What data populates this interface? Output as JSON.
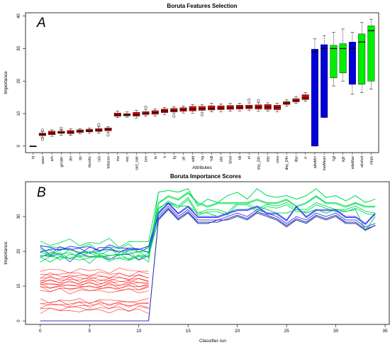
{
  "chart_data": [
    {
      "type": "box",
      "panel_letter": "A",
      "title": "Boruta Features Selection",
      "xlabel": "Attributes",
      "ylabel": "Importance",
      "ylim": [
        -2,
        41
      ],
      "yticks": [
        0,
        10,
        20,
        30,
        40
      ],
      "colors": {
        "rejected": "#dd0000",
        "tentative": "#0000dd",
        "confirmed": "#00ee00",
        "shadow": "#222222"
      },
      "categories": [
        "ht",
        "aoeo",
        "arh",
        "gender",
        "dm",
        "bb",
        "diuretic",
        "ccb",
        "tobacco",
        "rha",
        "esc",
        "sart_rate",
        "bmi",
        "ta",
        "k",
        "tg",
        "plr",
        "sdd",
        "hg",
        "hdl",
        "abc",
        "tchol",
        "ldl",
        "ef",
        "sbp_24h",
        "sbp",
        "urea",
        "dbp_24h",
        "dbp",
        "cr",
        "adwMin",
        "lowMean",
        "hgt",
        "age",
        "sdwMax",
        "alcohol",
        "mbps"
      ],
      "boxes": [
        {
          "name": "ht",
          "status": "shadow",
          "q1": 0,
          "median": 0,
          "q3": 0,
          "whisker_low": 0,
          "whisker_high": 0,
          "outliers": []
        },
        {
          "name": "aoeo",
          "status": "rejected",
          "q1": 3.2,
          "median": 3.6,
          "q3": 4.0,
          "whisker_low": 2.6,
          "whisker_high": 4.5,
          "outliers": [
            2.1,
            4.9
          ]
        },
        {
          "name": "arh",
          "status": "rejected",
          "q1": 3.5,
          "median": 4.0,
          "q3": 4.6,
          "whisker_low": 3.0,
          "whisker_high": 5.0,
          "outliers": []
        },
        {
          "name": "gender",
          "status": "rejected",
          "q1": 3.9,
          "median": 4.2,
          "q3": 4.6,
          "whisker_low": 3.3,
          "whisker_high": 5.0,
          "outliers": [
            5.5
          ]
        },
        {
          "name": "dm",
          "status": "rejected",
          "q1": 3.8,
          "median": 4.3,
          "q3": 4.8,
          "whisker_low": 3.3,
          "whisker_high": 5.3,
          "outliers": []
        },
        {
          "name": "bb",
          "status": "rejected",
          "q1": 4.2,
          "median": 4.6,
          "q3": 5.0,
          "whisker_low": 3.8,
          "whisker_high": 5.4,
          "outliers": []
        },
        {
          "name": "diuretic",
          "status": "rejected",
          "q1": 4.4,
          "median": 4.7,
          "q3": 5.2,
          "whisker_low": 4.0,
          "whisker_high": 5.6,
          "outliers": []
        },
        {
          "name": "ccb",
          "status": "rejected",
          "q1": 4.5,
          "median": 4.9,
          "q3": 5.4,
          "whisker_low": 4.0,
          "whisker_high": 5.9,
          "outliers": [
            6.6
          ]
        },
        {
          "name": "tobacco",
          "status": "rejected",
          "q1": 4.7,
          "median": 5.1,
          "q3": 5.6,
          "whisker_low": 4.2,
          "whisker_high": 6.0,
          "outliers": [
            3.4
          ]
        },
        {
          "name": "rha",
          "status": "rejected",
          "q1": 9.2,
          "median": 9.6,
          "q3": 10.2,
          "whisker_low": 8.8,
          "whisker_high": 10.8,
          "outliers": []
        },
        {
          "name": "esc",
          "status": "rejected",
          "q1": 9.3,
          "median": 9.6,
          "q3": 10.0,
          "whisker_low": 8.9,
          "whisker_high": 10.5,
          "outliers": []
        },
        {
          "name": "sart_rate",
          "status": "rejected",
          "q1": 9.2,
          "median": 9.7,
          "q3": 10.4,
          "whisker_low": 8.6,
          "whisker_high": 11.0,
          "outliers": []
        },
        {
          "name": "bmi",
          "status": "rejected",
          "q1": 9.7,
          "median": 10.1,
          "q3": 10.6,
          "whisker_low": 9.2,
          "whisker_high": 11.2,
          "outliers": [
            12.0
          ]
        },
        {
          "name": "ta",
          "status": "rejected",
          "q1": 9.8,
          "median": 10.3,
          "q3": 10.9,
          "whisker_low": 9.2,
          "whisker_high": 11.4,
          "outliers": []
        },
        {
          "name": "k",
          "status": "rejected",
          "q1": 10.3,
          "median": 10.8,
          "q3": 11.4,
          "whisker_low": 9.7,
          "whisker_high": 11.9,
          "outliers": []
        },
        {
          "name": "tg",
          "status": "rejected",
          "q1": 10.5,
          "median": 11.0,
          "q3": 11.6,
          "whisker_low": 10.0,
          "whisker_high": 12.1,
          "outliers": [
            9.2
          ]
        },
        {
          "name": "plr",
          "status": "rejected",
          "q1": 10.7,
          "median": 11.2,
          "q3": 11.8,
          "whisker_low": 10.2,
          "whisker_high": 12.3,
          "outliers": []
        },
        {
          "name": "sdd",
          "status": "rejected",
          "q1": 10.8,
          "median": 11.4,
          "q3": 12.2,
          "whisker_low": 10.1,
          "whisker_high": 12.8,
          "outliers": []
        },
        {
          "name": "hg",
          "status": "rejected",
          "q1": 11.0,
          "median": 11.5,
          "q3": 12.2,
          "whisker_low": 10.4,
          "whisker_high": 12.8,
          "outliers": [
            9.6
          ]
        },
        {
          "name": "hdl",
          "status": "rejected",
          "q1": 11.1,
          "median": 11.6,
          "q3": 12.4,
          "whisker_low": 10.6,
          "whisker_high": 13.2,
          "outliers": []
        },
        {
          "name": "abc",
          "status": "rejected",
          "q1": 11.2,
          "median": 11.7,
          "q3": 12.4,
          "whisker_low": 10.6,
          "whisker_high": 13.0,
          "outliers": []
        },
        {
          "name": "tchol",
          "status": "rejected",
          "q1": 11.3,
          "median": 11.8,
          "q3": 12.5,
          "whisker_low": 10.7,
          "whisker_high": 13.1,
          "outliers": []
        },
        {
          "name": "ldl",
          "status": "rejected",
          "q1": 11.4,
          "median": 11.9,
          "q3": 12.6,
          "whisker_low": 10.8,
          "whisker_high": 13.2,
          "outliers": []
        },
        {
          "name": "ef",
          "status": "rejected",
          "q1": 11.5,
          "median": 12.0,
          "q3": 12.6,
          "whisker_low": 10.9,
          "whisker_high": 13.3,
          "outliers": [
            14.2
          ]
        },
        {
          "name": "sbp_24h",
          "status": "rejected",
          "q1": 11.4,
          "median": 12.0,
          "q3": 12.7,
          "whisker_low": 10.8,
          "whisker_high": 13.3,
          "outliers": [
            14.0
          ]
        },
        {
          "name": "sbp",
          "status": "rejected",
          "q1": 11.3,
          "median": 12.0,
          "q3": 12.8,
          "whisker_low": 10.7,
          "whisker_high": 13.3,
          "outliers": []
        },
        {
          "name": "urea",
          "status": "rejected",
          "q1": 11.2,
          "median": 11.9,
          "q3": 12.6,
          "whisker_low": 10.6,
          "whisker_high": 13.2,
          "outliers": []
        },
        {
          "name": "dbp_24h",
          "status": "rejected",
          "q1": 12.8,
          "median": 13.2,
          "q3": 13.7,
          "whisker_low": 12.3,
          "whisker_high": 14.2,
          "outliers": []
        },
        {
          "name": "dbp",
          "status": "rejected",
          "q1": 13.6,
          "median": 14.0,
          "q3": 14.6,
          "whisker_low": 13.2,
          "whisker_high": 15.2,
          "outliers": []
        },
        {
          "name": "cr",
          "status": "rejected",
          "q1": 14.3,
          "median": 14.8,
          "q3": 15.8,
          "whisker_low": 13.8,
          "whisker_high": 16.4,
          "outliers": []
        },
        {
          "name": "adwMin",
          "status": "tentative",
          "q1": 0.0,
          "median": 29.0,
          "q3": 29.8,
          "whisker_low": 0.0,
          "whisker_high": 33.0,
          "outliers": []
        },
        {
          "name": "lowMean",
          "status": "tentative",
          "q1": 8.8,
          "median": 30.0,
          "q3": 31.2,
          "whisker_low": 8.8,
          "whisker_high": 34.0,
          "outliers": []
        },
        {
          "name": "hgt",
          "status": "confirmed",
          "q1": 21.0,
          "median": 30.0,
          "q3": 31.0,
          "whisker_low": 18.5,
          "whisker_high": 35.0,
          "outliers": []
        },
        {
          "name": "age",
          "status": "confirmed",
          "q1": 22.5,
          "median": 30.0,
          "q3": 31.5,
          "whisker_low": 20.0,
          "whisker_high": 36.0,
          "outliers": []
        },
        {
          "name": "sdwMax",
          "status": "tentative",
          "q1": 19.0,
          "median": 30.0,
          "q3": 32.0,
          "whisker_low": 16.0,
          "whisker_high": 35.0,
          "outliers": []
        },
        {
          "name": "alcohol",
          "status": "confirmed",
          "q1": 19.0,
          "median": 32.0,
          "q3": 34.5,
          "whisker_low": 16.5,
          "whisker_high": 38.0,
          "outliers": []
        },
        {
          "name": "mbps",
          "status": "confirmed",
          "q1": 20.0,
          "median": 35.5,
          "q3": 37.0,
          "whisker_low": 17.5,
          "whisker_high": 39.0,
          "outliers": []
        }
      ]
    },
    {
      "type": "line",
      "panel_letter": "B",
      "title": "Boruta Importance Scores",
      "xlabel": "Classifier run",
      "ylabel": "Importance",
      "xlim": [
        -1.5,
        35.5
      ],
      "ylim": [
        -1,
        40
      ],
      "xticks": [
        0,
        5,
        10,
        15,
        20,
        25,
        30,
        35
      ],
      "yticks": [
        0,
        10,
        20,
        30
      ],
      "colors": {
        "rejected": "#ff0000",
        "tentative": "#3333ff",
        "confirmed": "#00dd55",
        "shadow": "#3333aa"
      },
      "runs_before_jump": 12,
      "runs_total": 35,
      "early_levels": [
        {
          "group": "confirmed",
          "level": 22.5
        },
        {
          "group": "confirmed",
          "level": 21.0
        },
        {
          "group": "confirmed",
          "level": 20.0
        },
        {
          "group": "confirmed",
          "level": 19.0
        },
        {
          "group": "tentative",
          "level": 20.5
        },
        {
          "group": "tentative",
          "level": 18.5
        },
        {
          "group": "confirmed",
          "level": 18.0
        },
        {
          "group": "rejected",
          "level": 14.5
        },
        {
          "group": "rejected",
          "level": 13.5
        },
        {
          "group": "rejected",
          "level": 13.0
        },
        {
          "group": "rejected",
          "level": 12.5
        },
        {
          "group": "rejected",
          "level": 12.0
        },
        {
          "group": "rejected",
          "level": 11.6
        },
        {
          "group": "rejected",
          "level": 11.2
        },
        {
          "group": "rejected",
          "level": 10.8
        },
        {
          "group": "rejected",
          "level": 10.4
        },
        {
          "group": "rejected",
          "level": 10.0
        },
        {
          "group": "rejected",
          "level": 9.6
        },
        {
          "group": "rejected",
          "level": 9.2
        },
        {
          "group": "rejected",
          "level": 8.6
        },
        {
          "group": "rejected",
          "level": 5.8
        },
        {
          "group": "rejected",
          "level": 5.2
        },
        {
          "group": "rejected",
          "level": 4.8
        },
        {
          "group": "rejected",
          "level": 4.4
        },
        {
          "group": "rejected",
          "level": 3.6
        },
        {
          "group": "rejected",
          "level": 3.0
        },
        {
          "group": "shadow",
          "level": 0.0
        }
      ],
      "late_series": [
        {
          "group": "confirmed",
          "values": [
            37.0,
            37.5,
            37.0,
            38.0,
            33.0,
            35.0,
            34.0,
            36.0,
            37.0,
            35.0,
            38.0,
            36.0,
            35.5,
            36.0,
            35.0,
            36.0,
            38.0,
            35.5,
            36.0,
            34.5,
            36.0,
            34.0,
            35.0
          ]
        },
        {
          "group": "confirmed",
          "values": [
            34.0,
            36.0,
            35.0,
            37.0,
            34.0,
            33.0,
            34.0,
            34.0,
            34.0,
            34.0,
            35.0,
            34.0,
            34.0,
            35.0,
            33.0,
            34.0,
            36.0,
            34.0,
            34.0,
            33.0,
            34.0,
            33.0,
            33.0
          ]
        },
        {
          "group": "confirmed",
          "values": [
            32.0,
            34.5,
            33.0,
            35.5,
            31.0,
            32.0,
            32.0,
            31.0,
            34.0,
            34.0,
            32.0,
            33.5,
            33.0,
            34.0,
            32.0,
            32.0,
            34.0,
            33.0,
            32.0,
            32.0,
            33.0,
            31.5,
            31.0
          ]
        },
        {
          "group": "confirmed",
          "values": [
            32.5,
            34.0,
            33.0,
            33.0,
            31.0,
            31.0,
            30.0,
            31.0,
            32.0,
            32.0,
            33.0,
            32.0,
            31.0,
            31.0,
            32.0,
            31.0,
            32.0,
            31.0,
            32.0,
            31.5,
            32.0,
            26.0,
            30.0
          ]
        },
        {
          "group": "tentative",
          "values": [
            31.0,
            34.0,
            31.0,
            33.0,
            30.0,
            30.0,
            30.0,
            31.0,
            32.0,
            32.0,
            33.0,
            31.0,
            31.0,
            29.0,
            33.0,
            30.0,
            32.0,
            32.0,
            32.0,
            30.0,
            30.0,
            28.0,
            31.0
          ]
        },
        {
          "group": "tentative",
          "values": [
            30.0,
            33.0,
            30.0,
            32.0,
            29.0,
            29.0,
            29.0,
            30.0,
            31.0,
            30.0,
            32.0,
            31.0,
            30.0,
            28.0,
            30.0,
            29.0,
            31.0,
            30.0,
            31.0,
            29.0,
            29.0,
            27.0,
            28.0
          ]
        },
        {
          "group": "shadow",
          "values": [
            29.0,
            32.0,
            29.0,
            31.0,
            28.0,
            28.0,
            29.0,
            29.0,
            30.0,
            29.0,
            31.0,
            30.0,
            29.0,
            27.0,
            29.0,
            28.0,
            30.0,
            29.0,
            30.0,
            28.0,
            28.0,
            26.0,
            27.5
          ]
        }
      ]
    }
  ]
}
